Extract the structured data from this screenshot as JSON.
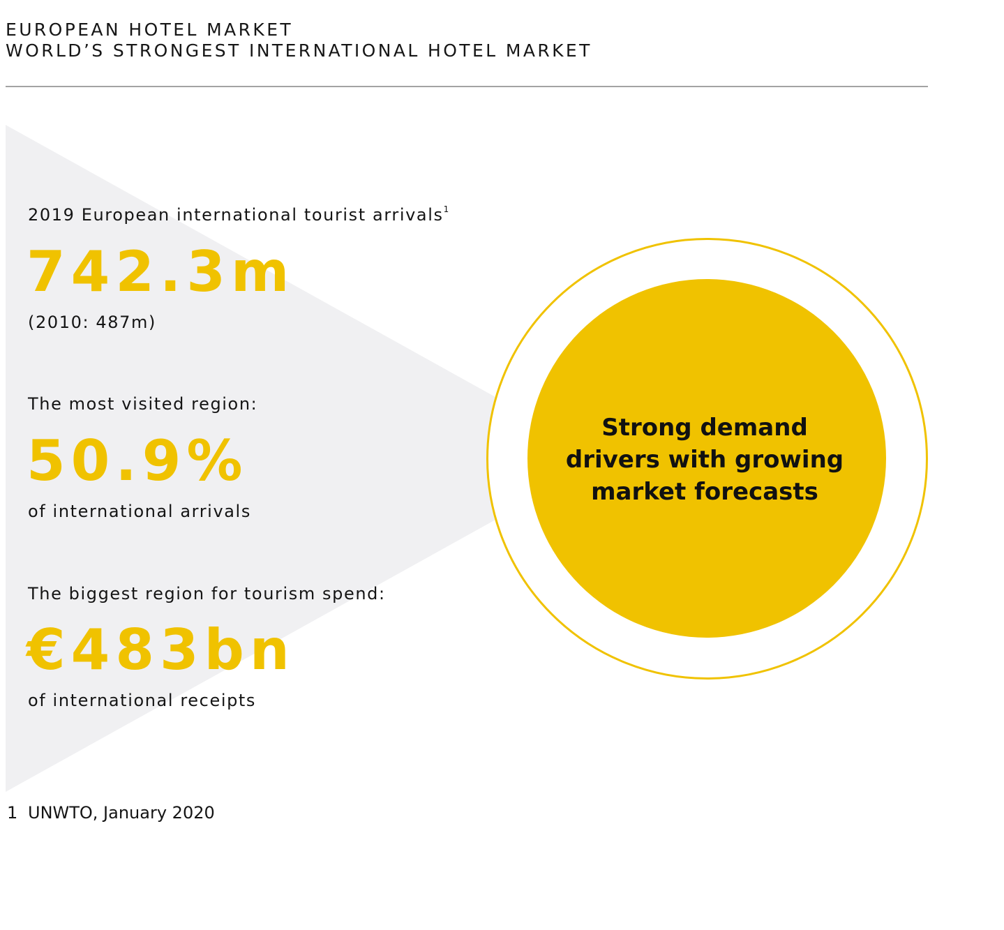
{
  "header": {
    "title": "EUROPEAN HOTEL MARKET",
    "subtitle": "WORLD’S STRONGEST INTERNATIONAL HOTEL MARKET"
  },
  "stats": [
    {
      "label": "2019 European international tourist arrivals",
      "footnote_ref": "1",
      "value": "742.3m",
      "caption": "(2010: 487m)"
    },
    {
      "label": "The most visited region:",
      "value": "50.9%",
      "caption": "of international arrivals"
    },
    {
      "label": "The biggest region for tourism spend:",
      "value": "€483bn",
      "caption": "of international receipts"
    }
  ],
  "callout": {
    "lines": [
      "Strong demand",
      "drivers with growing",
      "market forecasts"
    ]
  },
  "footnote": {
    "number": "1",
    "text": "UNWTO, January 2020"
  },
  "colors": {
    "accent": "#f0c200",
    "wedge": "#f0f0f2",
    "rule": "#a3a3a3",
    "text": "#141414"
  }
}
